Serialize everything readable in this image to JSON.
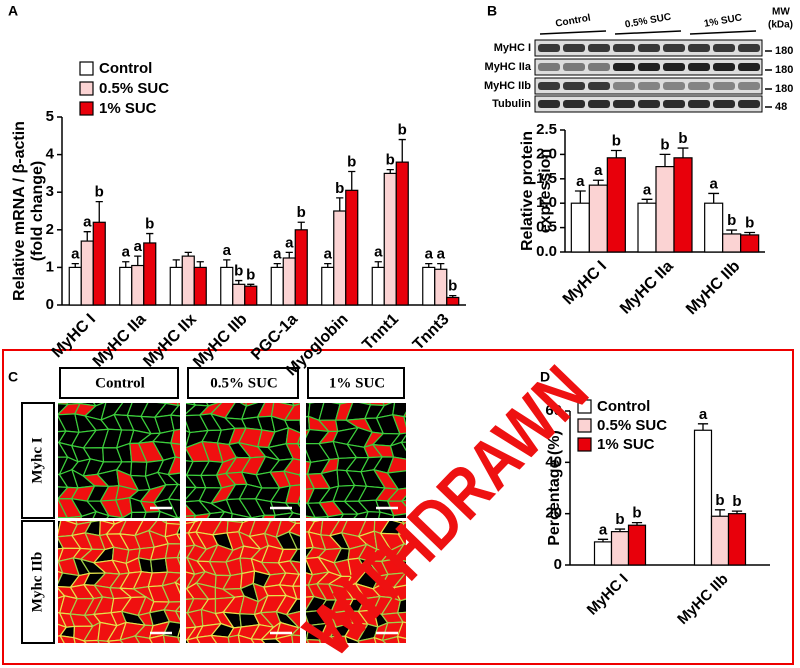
{
  "panel_labels": [
    "A",
    "B",
    "C",
    "D"
  ],
  "chart_data": [
    {
      "type": "bar",
      "ylabel": [
        "Relative mRNA / β-actin",
        "(fold change)"
      ],
      "categories": [
        "MyHC I",
        "MyHC IIa",
        "MyHC IIx",
        "MyHC IIb",
        "PGC-1a",
        "Myoglobin",
        "Tnnt1",
        "Tnnt3"
      ],
      "series": [
        {
          "name": "Control",
          "color": "#ffffff",
          "values": [
            1,
            1,
            1,
            1,
            1,
            1,
            1,
            1
          ],
          "errors": [
            0.1,
            0.15,
            0.2,
            0.2,
            0.1,
            0.1,
            0.15,
            0.1
          ],
          "letters": [
            "a",
            "a",
            null,
            "a",
            "a",
            "a",
            "a",
            "a"
          ]
        },
        {
          "name": "0.5% SUC",
          "color": "#fbd3d3",
          "values": [
            1.7,
            1.05,
            1.3,
            0.55,
            1.25,
            2.5,
            3.5,
            0.95
          ],
          "errors": [
            0.25,
            0.25,
            0.1,
            0.1,
            0.15,
            0.35,
            0.1,
            0.15
          ],
          "letters": [
            "a",
            "a",
            null,
            "b",
            "a",
            "b",
            "b",
            "a"
          ]
        },
        {
          "name": "1% SUC",
          "color": "#e8000b",
          "values": [
            2.2,
            1.65,
            1.0,
            0.5,
            2.0,
            3.05,
            3.8,
            0.2
          ],
          "errors": [
            0.55,
            0.25,
            0.15,
            0.05,
            0.2,
            0.5,
            0.6,
            0.05
          ],
          "letters": [
            "b",
            "b",
            null,
            "b",
            "b",
            "b",
            "b",
            "b"
          ]
        }
      ],
      "ylim": [
        0,
        5
      ],
      "yticks": [
        0,
        1,
        2,
        3,
        4,
        5
      ],
      "legend": "upper-left"
    },
    {
      "type": "bar",
      "ylabel": [
        "Relative protein",
        "expression"
      ],
      "categories": [
        "MyHC I",
        "MyHC IIa",
        "MyHC IIb"
      ],
      "series": [
        {
          "name": "Control",
          "color": "#ffffff",
          "values": [
            1.0,
            1.0,
            1.0
          ],
          "errors": [
            0.25,
            0.08,
            0.2
          ],
          "letters": [
            "a",
            "a",
            "a"
          ]
        },
        {
          "name": "0.5% SUC",
          "color": "#fbd3d3",
          "values": [
            1.37,
            1.75,
            0.37
          ],
          "errors": [
            0.1,
            0.25,
            0.08
          ],
          "letters": [
            "a",
            "b",
            "b"
          ]
        },
        {
          "name": "1% SUC",
          "color": "#e8000b",
          "values": [
            1.93,
            1.93,
            0.35
          ],
          "errors": [
            0.15,
            0.2,
            0.05
          ],
          "letters": [
            "b",
            "b",
            "b"
          ]
        }
      ],
      "ylim": [
        0,
        2.5
      ],
      "yticks": [
        {
          "value": 0,
          "label": "0.0"
        },
        0.5,
        {
          "value": 1,
          "label": "1.0"
        },
        1.5,
        {
          "value": 2,
          "label": "2.0"
        },
        2.5
      ],
      "legend": null
    },
    {
      "type": "bar",
      "ylabel": [
        "Percentage (%)"
      ],
      "categories": [
        "MyHC I",
        "MyHC IIb"
      ],
      "series": [
        {
          "name": "Control",
          "color": "#ffffff",
          "values": [
            9,
            52.5
          ],
          "errors": [
            1,
            2.5
          ],
          "letters": [
            "a",
            "a"
          ]
        },
        {
          "name": "0.5% SUC",
          "color": "#fbd3d3",
          "values": [
            13,
            19
          ],
          "errors": [
            1,
            2.5
          ],
          "letters": [
            "b",
            "b"
          ]
        },
        {
          "name": "1% SUC",
          "color": "#e8000b",
          "values": [
            15.5,
            20
          ],
          "errors": [
            1,
            1
          ],
          "letters": [
            "b",
            "b"
          ]
        }
      ],
      "ylim": [
        0,
        60
      ],
      "yticks": [
        0,
        20,
        40,
        60
      ],
      "legend": "upper-left"
    }
  ],
  "blot": {
    "lanes": [
      "Control",
      "0.5% SUC",
      "1% SUC"
    ],
    "rows": [
      "MyHC I",
      "MyHC IIa",
      "MyHC IIb",
      "Tubulin"
    ],
    "mw_header": [
      "MW",
      "(kDa)"
    ],
    "mw": [
      "180",
      "180",
      "180",
      "48"
    ]
  },
  "micrographs": {
    "columns": [
      "Control",
      "0.5% SUC",
      "1% SUC"
    ],
    "rows": [
      "Myhc I",
      "Myhc IIb"
    ]
  },
  "watermark": "WITHDRAWN"
}
